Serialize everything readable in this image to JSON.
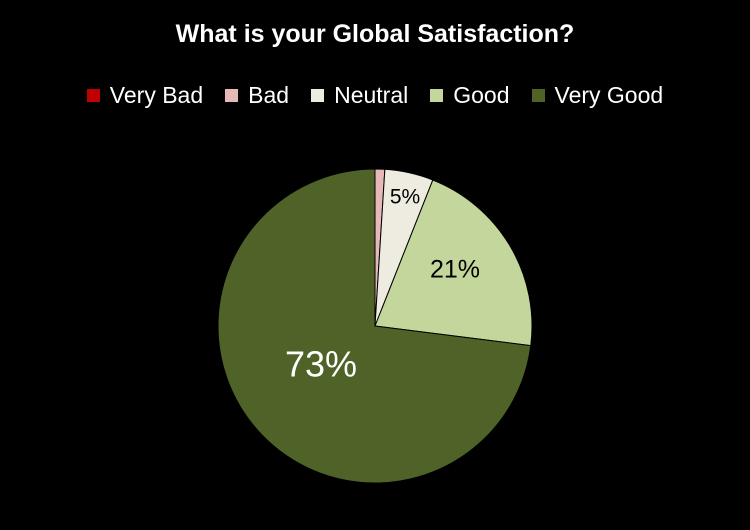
{
  "chart_data": {
    "type": "pie",
    "title": "What is your Global Satisfaction?",
    "legend_position": "top",
    "start_angle_deg": 0,
    "direction": "clockwise",
    "slices": [
      {
        "name": "Very Bad",
        "value": 0.0,
        "label": "",
        "color": "#C00000",
        "label_color": "#000000"
      },
      {
        "name": "Bad",
        "value": 1.0,
        "label": "",
        "color": "#E6B9B8",
        "label_color": "#000000"
      },
      {
        "name": "Neutral",
        "value": 5.0,
        "label": "5%",
        "color": "#EEECE1",
        "label_color": "#000000"
      },
      {
        "name": "Good",
        "value": 21.0,
        "label": "21%",
        "color": "#C3D69B",
        "label_color": "#000000"
      },
      {
        "name": "Very Good",
        "value": 73.0,
        "label": "73%",
        "color": "#4F6228",
        "label_color": "#FFFFFF"
      }
    ]
  }
}
